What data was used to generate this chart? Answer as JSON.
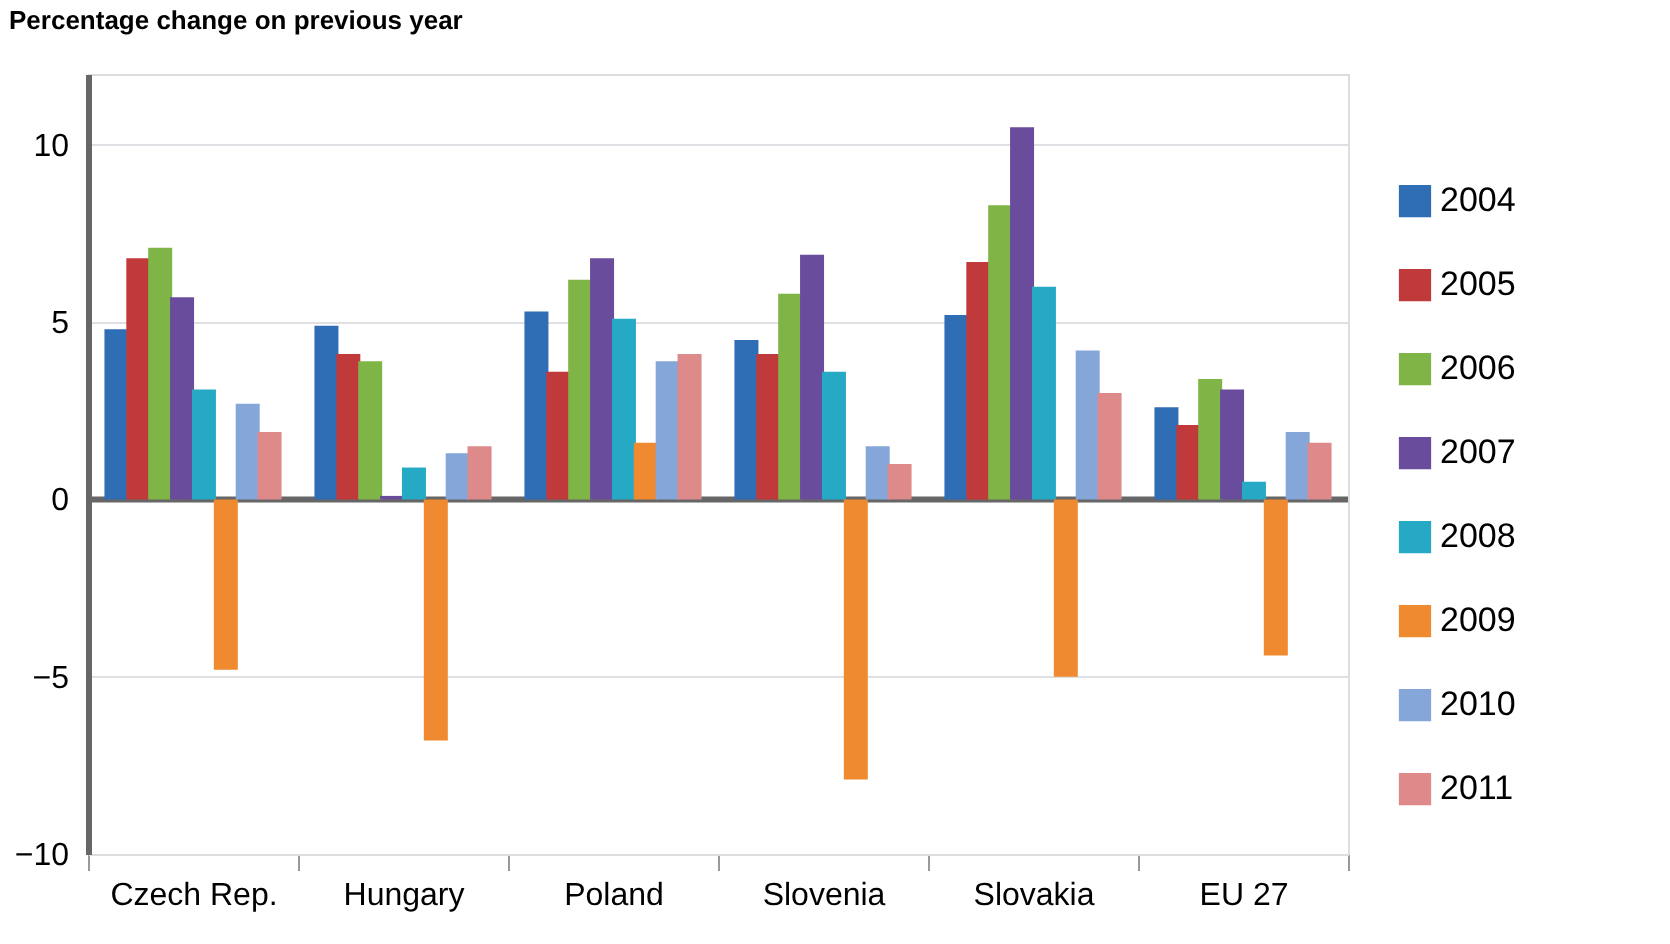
{
  "chart_data": {
    "type": "bar",
    "ylabel": "Percentage change on previous year",
    "categories": [
      "Czech Rep.",
      "Hungary",
      "Poland",
      "Slovenia",
      "Slovakia",
      "EU 27"
    ],
    "series": [
      {
        "name": "2004",
        "color": "#2f6db5",
        "values": [
          4.8,
          4.9,
          5.3,
          4.5,
          5.2,
          2.6
        ]
      },
      {
        "name": "2005",
        "color": "#c0393b",
        "values": [
          6.8,
          4.1,
          3.6,
          4.1,
          6.7,
          2.1
        ]
      },
      {
        "name": "2006",
        "color": "#7fb446",
        "values": [
          7.1,
          3.9,
          6.2,
          5.8,
          8.3,
          3.4
        ]
      },
      {
        "name": "2007",
        "color": "#6a4c9c",
        "values": [
          5.7,
          0.1,
          6.8,
          6.9,
          10.5,
          3.1
        ]
      },
      {
        "name": "2008",
        "color": "#26a9c4",
        "values": [
          3.1,
          0.9,
          5.1,
          3.6,
          6.0,
          0.5
        ]
      },
      {
        "name": "2009",
        "color": "#f08a30",
        "values": [
          -4.8,
          -6.8,
          1.6,
          -7.9,
          -5.0,
          -4.4
        ]
      },
      {
        "name": "2010",
        "color": "#84a6d8",
        "values": [
          2.7,
          1.3,
          3.9,
          1.5,
          4.2,
          1.9
        ]
      },
      {
        "name": "2011",
        "color": "#de8a8a",
        "values": [
          1.9,
          1.5,
          4.1,
          1.0,
          3.0,
          1.6
        ]
      }
    ],
    "ylim": [
      -10,
      12
    ],
    "yticks": [
      -10,
      -5,
      0,
      5,
      10
    ],
    "grid": "y",
    "legend": "right"
  }
}
